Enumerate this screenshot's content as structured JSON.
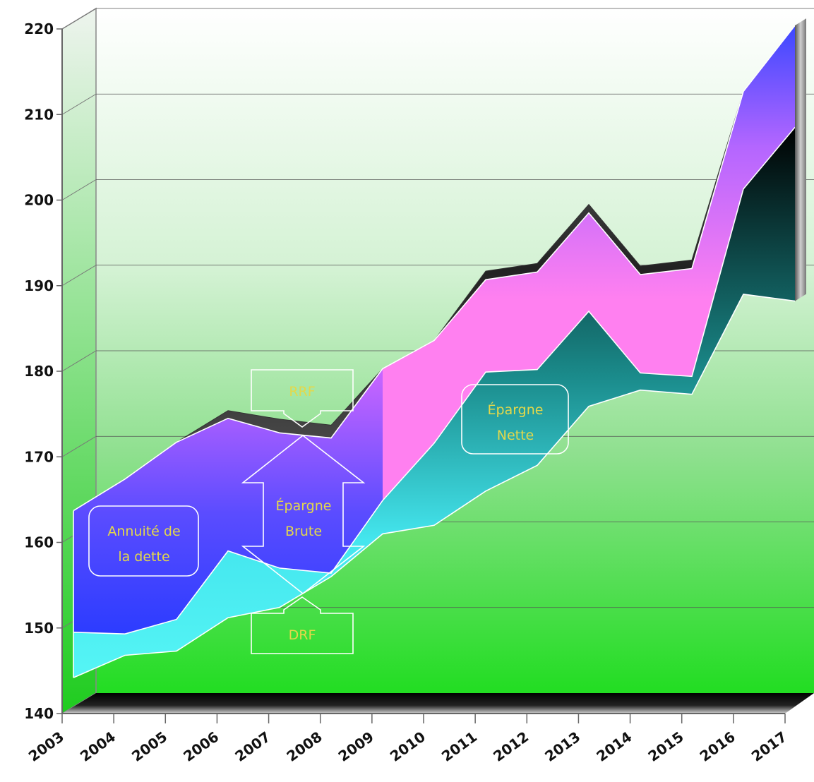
{
  "chart_data": {
    "type": "area",
    "x": [
      "2003",
      "2004",
      "2005",
      "2006",
      "2007",
      "2008",
      "2009",
      "2010",
      "2011",
      "2012",
      "2013",
      "2014",
      "2015",
      "2016",
      "2017"
    ],
    "ylim": [
      140,
      220
    ],
    "yticks": [
      140,
      150,
      160,
      170,
      180,
      190,
      200,
      210,
      220
    ],
    "series": [
      {
        "key": "base",
        "values": [
          144.2,
          146.8,
          147.3,
          151.2,
          152.4,
          156.0,
          161.0,
          162.0,
          166.0,
          169.0,
          175.9,
          177.8,
          177.3,
          189.0,
          188.2
        ]
      },
      {
        "key": "drf",
        "values": [
          149.5,
          149.3,
          151.0,
          159.0,
          157.0,
          156.4,
          164.9,
          171.6,
          179.9,
          180.2,
          187.0,
          179.8,
          179.4,
          201.3,
          208.5
        ]
      },
      {
        "key": "rrf",
        "values": [
          163.7,
          167.4,
          171.7,
          174.5,
          172.8,
          172.2,
          180.3,
          183.6,
          190.7,
          191.6,
          198.5,
          191.3,
          192.0,
          212.7,
          220.4
        ]
      },
      {
        "key": "rrf_top",
        "values": [
          163.7,
          167.4,
          171.7,
          175.4,
          174.4,
          173.7,
          180.3,
          183.6,
          191.7,
          192.6,
          199.5,
          192.3,
          193.0,
          212.7,
          220.4
        ]
      }
    ],
    "annotations": {
      "annuite": [
        "Annuité de",
        "la dette"
      ],
      "brute": [
        "Épargne",
        "Brute"
      ],
      "nette": [
        "Épargne",
        "Nette"
      ],
      "rrf": "RRF",
      "drf": "DRF"
    },
    "colors": {
      "background_top": "#ffffff",
      "background_bottom": "#22dd22",
      "annuite_band": "#3a42ff",
      "epargne_brute_band": "#cc66ff",
      "rrf_band": "#ff80f0",
      "epargne_nette_band": "#55f5f5",
      "annotation_text": "#e4d84a"
    }
  }
}
